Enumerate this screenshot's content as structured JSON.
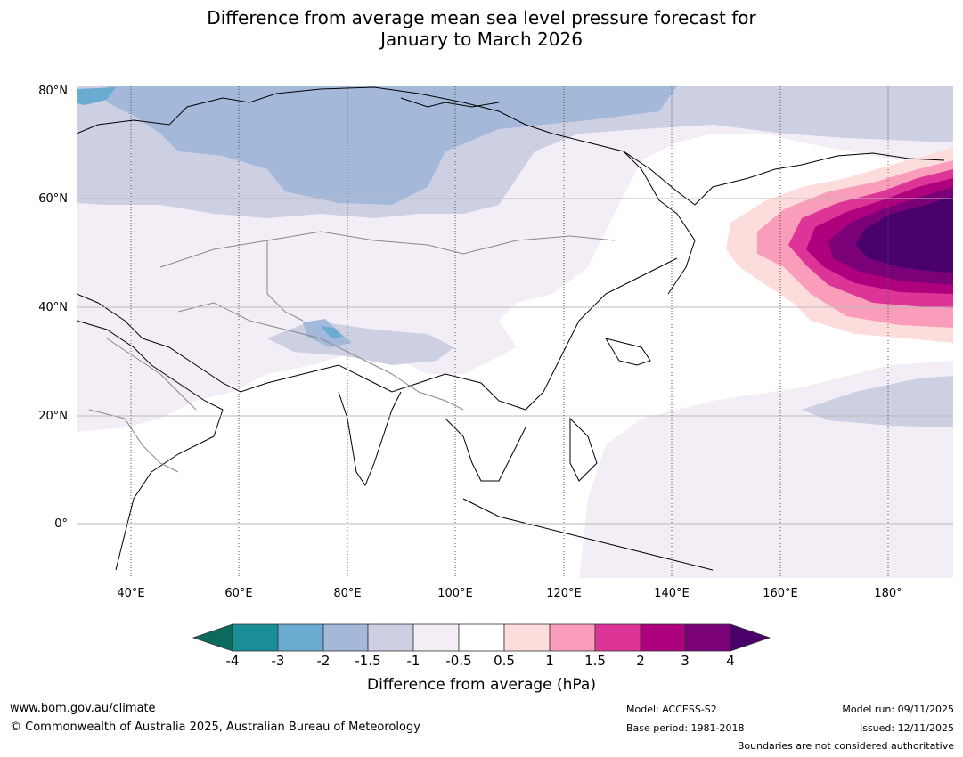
{
  "title": {
    "line1": "Difference from average mean sea level pressure forecast for",
    "line2": "January to March 2026"
  },
  "map": {
    "lat_labels": [
      "80°N",
      "60°N",
      "40°N",
      "20°N",
      "0°"
    ],
    "lon_labels": [
      "40°E",
      "60°E",
      "80°E",
      "100°E",
      "120°E",
      "140°E",
      "160°E",
      "180°"
    ]
  },
  "colorbar": {
    "title": "Difference from average (hPa)",
    "ticks": [
      "-4",
      "-3",
      "-2",
      "-1.5",
      "-1",
      "-0.5",
      "0.5",
      "1",
      "1.5",
      "2",
      "3",
      "4"
    ],
    "colors": {
      "lt_m4": "#0a6b5c",
      "m4_m3": "#1a8e96",
      "m3_m2": "#6aabd2",
      "m2_m15": "#a4b9da",
      "m15_m1": "#cdcfe3",
      "m1_m05": "#f3edf6",
      "m05_05": "#ffffff",
      "p05_1": "#fddcdc",
      "p1_15": "#f99dbb",
      "p15_2": "#dd3497",
      "p2_3": "#ae017e",
      "p3_4": "#7a0177",
      "gt_4": "#49006a"
    }
  },
  "footer": {
    "url": "www.bom.gov.au/climate",
    "copyright": "© Commonwealth of Australia 2025, Australian Bureau of Meteorology",
    "model": "Model: ACCESS-S2",
    "base_period": "Base period: 1981-2018",
    "model_run": "Model run: 09/11/2025",
    "issued": "Issued: 12/11/2025",
    "disclaimer": "Boundaries are not considered authoritative"
  }
}
